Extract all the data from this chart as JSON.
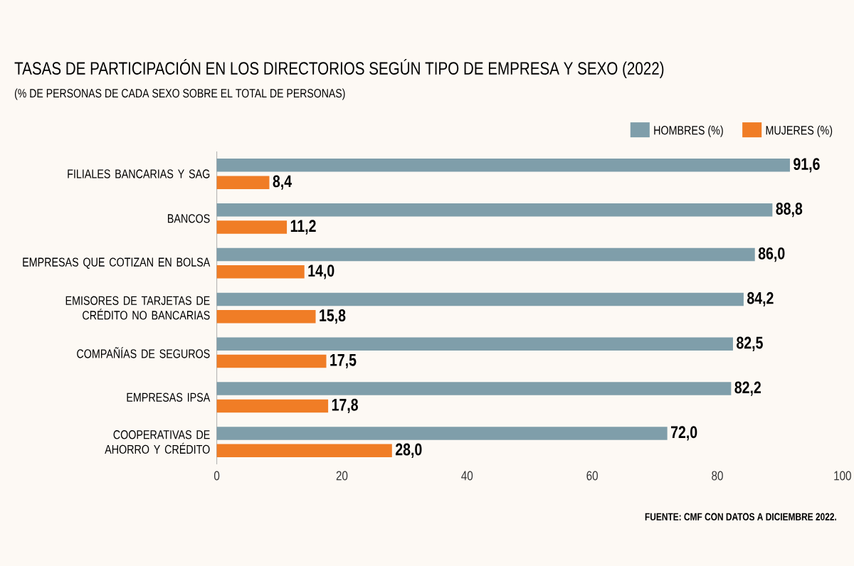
{
  "chart_data": {
    "type": "bar",
    "orientation": "horizontal",
    "title": "TASAS DE PARTICIPACIÓN EN LOS DIRECTORIOS SEGÚN TIPO DE EMPRESA Y SEXO (2022)",
    "subtitle": "(% DE PERSONAS DE CADA SEXO SOBRE EL TOTAL DE PERSONAS)",
    "categories": [
      "FILIALES BANCARIAS Y SAG",
      "BANCOS",
      "EMPRESAS QUE COTIZAN EN BOLSA",
      "EMISORES DE TARJETAS DE CRÉDITO NO BANCARIAS",
      "COMPAÑÍAS DE SEGUROS",
      "EMPRESAS IPSA",
      "COOPERATIVAS DE AHORRO Y CRÉDITO"
    ],
    "series": [
      {
        "name": "HOMBRES (%)",
        "color": "#7f9eaa",
        "values": [
          91.6,
          88.8,
          86.0,
          84.2,
          82.5,
          82.2,
          72.0
        ],
        "value_labels": [
          "91,6",
          "88,8",
          "86,0",
          "84,2",
          "82,5",
          "82,2",
          "72,0"
        ]
      },
      {
        "name": "MUJERES (%)",
        "color": "#f07d26",
        "values": [
          8.4,
          11.2,
          14.0,
          15.8,
          17.5,
          17.8,
          28.0
        ],
        "value_labels": [
          "8,4",
          "11,2",
          "14,0",
          "15,8",
          "17,5",
          "17,8",
          "28,0"
        ]
      }
    ],
    "xlim": [
      0,
      100
    ],
    "xticks": [
      0,
      20,
      40,
      60,
      80,
      100
    ],
    "legend": "top right",
    "annotations": [
      "FUENTE: CMF CON DATOS A DICIEMBRE 2022."
    ]
  }
}
